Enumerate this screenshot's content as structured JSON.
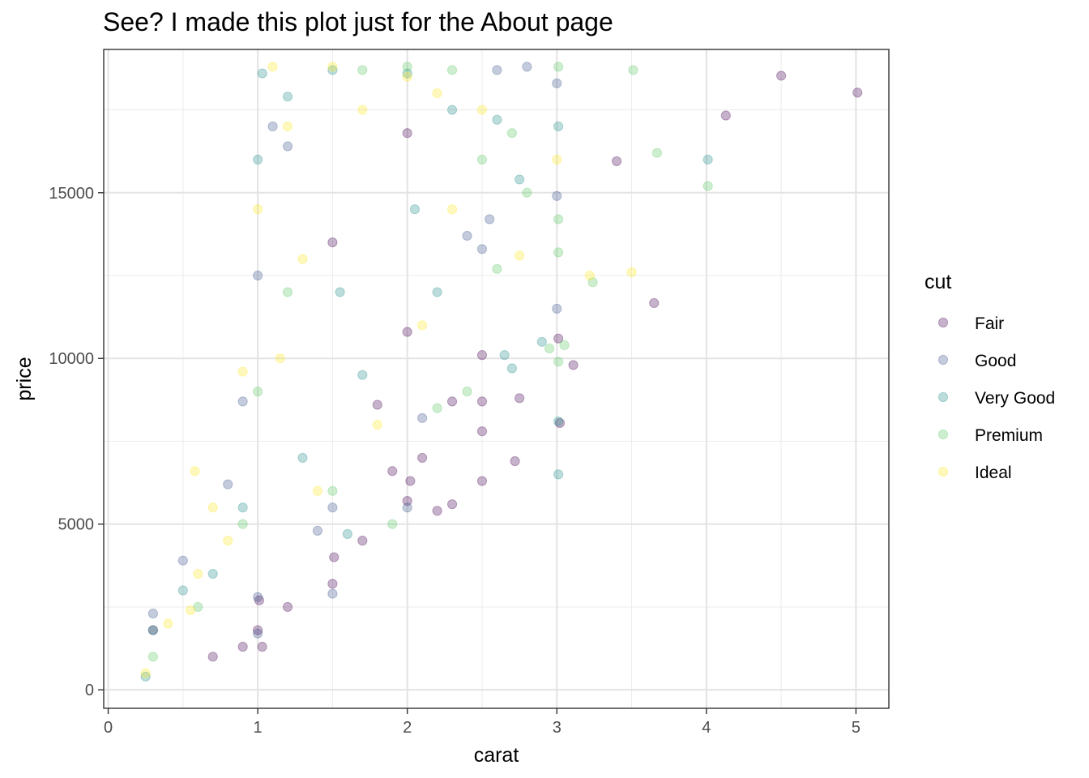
{
  "chart_data": {
    "type": "scatter",
    "title": "See? I made this plot just for the About page",
    "xlabel": "carat",
    "ylabel": "price",
    "xlim": [
      -0.03,
      5.22
    ],
    "ylim": [
      -558,
      19323
    ],
    "x_ticks": [
      0,
      1,
      2,
      3,
      4,
      5
    ],
    "x_tick_labels": [
      "0",
      "1",
      "2",
      "3",
      "4",
      "5"
    ],
    "y_ticks": [
      0,
      5000,
      10000,
      15000
    ],
    "y_tick_labels": [
      "0",
      "5000",
      "10000",
      "15000"
    ],
    "grid": true,
    "legend": {
      "title": "cut",
      "position": "right",
      "entries": [
        {
          "label": "Fair",
          "color": "#440154"
        },
        {
          "label": "Good",
          "color": "#3B528B"
        },
        {
          "label": "Very Good",
          "color": "#21908C"
        },
        {
          "label": "Premium",
          "color": "#5DC863"
        },
        {
          "label": "Ideal",
          "color": "#FDE725"
        }
      ]
    },
    "point_alpha": 0.3,
    "series": [
      {
        "name": "Fair",
        "color": "#440154",
        "points": [
          [
            0.3,
            1800
          ],
          [
            0.7,
            1000
          ],
          [
            0.9,
            1300
          ],
          [
            1.0,
            1800
          ],
          [
            1.01,
            2700
          ],
          [
            1.03,
            1300
          ],
          [
            1.2,
            2500
          ],
          [
            1.5,
            3200
          ],
          [
            1.51,
            4000
          ],
          [
            1.7,
            4500
          ],
          [
            1.9,
            6600
          ],
          [
            2.0,
            5700
          ],
          [
            2.02,
            6300
          ],
          [
            2.1,
            7000
          ],
          [
            2.2,
            5400
          ],
          [
            2.3,
            5600
          ],
          [
            2.5,
            6300
          ],
          [
            2.5,
            7800
          ],
          [
            2.5,
            8700
          ],
          [
            2.72,
            6900
          ],
          [
            2.75,
            8800
          ],
          [
            3.01,
            10600
          ],
          [
            3.11,
            9800
          ],
          [
            3.4,
            15950
          ],
          [
            3.65,
            11670
          ],
          [
            4.13,
            17330
          ],
          [
            4.5,
            18530
          ],
          [
            5.01,
            18020
          ],
          [
            3.02,
            8050
          ],
          [
            2.5,
            10100
          ],
          [
            2.0,
            16800
          ],
          [
            1.5,
            13500
          ],
          [
            2.0,
            10800
          ],
          [
            2.3,
            8700
          ],
          [
            1.8,
            8600
          ]
        ]
      },
      {
        "name": "Good",
        "color": "#3B528B",
        "points": [
          [
            0.3,
            2300
          ],
          [
            0.9,
            8700
          ],
          [
            1.0,
            1700
          ],
          [
            1.0,
            2800
          ],
          [
            1.5,
            2900
          ],
          [
            1.5,
            5500
          ],
          [
            2.0,
            5500
          ],
          [
            2.5,
            13300
          ],
          [
            2.8,
            18800
          ],
          [
            3.0,
            18300
          ],
          [
            3.0,
            11500
          ],
          [
            3.0,
            14900
          ],
          [
            1.0,
            12500
          ],
          [
            1.2,
            16400
          ],
          [
            2.1,
            8200
          ],
          [
            2.6,
            18700
          ],
          [
            1.4,
            4800
          ],
          [
            2.4,
            13700
          ],
          [
            0.5,
            3900
          ],
          [
            1.1,
            17000
          ],
          [
            2.55,
            14200
          ],
          [
            0.8,
            6200
          ]
        ]
      },
      {
        "name": "Very Good",
        "color": "#21908C",
        "points": [
          [
            0.25,
            400
          ],
          [
            0.3,
            1800
          ],
          [
            0.5,
            3000
          ],
          [
            0.7,
            3500
          ],
          [
            1.0,
            16000
          ],
          [
            1.03,
            18600
          ],
          [
            1.2,
            17900
          ],
          [
            1.5,
            18700
          ],
          [
            2.0,
            18600
          ],
          [
            2.3,
            17500
          ],
          [
            2.6,
            17200
          ],
          [
            2.75,
            15400
          ],
          [
            3.01,
            6500
          ],
          [
            3.01,
            8100
          ],
          [
            3.01,
            17000
          ],
          [
            4.01,
            16000
          ],
          [
            2.9,
            10500
          ],
          [
            2.7,
            9700
          ],
          [
            1.7,
            9500
          ],
          [
            2.2,
            12000
          ],
          [
            1.3,
            7000
          ],
          [
            0.9,
            5500
          ],
          [
            2.65,
            10100
          ],
          [
            1.6,
            4700
          ],
          [
            1.55,
            12000
          ],
          [
            2.05,
            14500
          ]
        ]
      },
      {
        "name": "Premium",
        "color": "#5DC863",
        "points": [
          [
            0.3,
            1000
          ],
          [
            0.6,
            2500
          ],
          [
            0.9,
            5000
          ],
          [
            1.0,
            9000
          ],
          [
            1.5,
            6000
          ],
          [
            1.7,
            18700
          ],
          [
            2.0,
            18800
          ],
          [
            2.3,
            18700
          ],
          [
            2.5,
            16000
          ],
          [
            2.8,
            15000
          ],
          [
            3.01,
            18800
          ],
          [
            3.01,
            14200
          ],
          [
            3.01,
            13200
          ],
          [
            3.01,
            9900
          ],
          [
            3.05,
            10400
          ],
          [
            3.24,
            12300
          ],
          [
            3.51,
            18700
          ],
          [
            3.67,
            16200
          ],
          [
            4.01,
            15200
          ],
          [
            2.95,
            10300
          ],
          [
            2.6,
            12700
          ],
          [
            1.9,
            5000
          ],
          [
            2.2,
            8500
          ],
          [
            1.2,
            12000
          ],
          [
            2.4,
            9000
          ],
          [
            2.7,
            16800
          ]
        ]
      },
      {
        "name": "Ideal",
        "color": "#FDE725",
        "points": [
          [
            0.25,
            500
          ],
          [
            0.4,
            2000
          ],
          [
            0.6,
            3500
          ],
          [
            0.7,
            5500
          ],
          [
            0.8,
            4500
          ],
          [
            0.9,
            9600
          ],
          [
            1.0,
            14500
          ],
          [
            1.1,
            18800
          ],
          [
            1.2,
            17000
          ],
          [
            1.3,
            13000
          ],
          [
            1.5,
            18800
          ],
          [
            1.7,
            17500
          ],
          [
            2.0,
            18500
          ],
          [
            2.2,
            18000
          ],
          [
            2.5,
            17500
          ],
          [
            3.0,
            16000
          ],
          [
            2.75,
            13100
          ],
          [
            3.22,
            12500
          ],
          [
            3.5,
            12600
          ],
          [
            1.8,
            8000
          ],
          [
            1.4,
            6000
          ],
          [
            2.3,
            14500
          ],
          [
            0.58,
            6600
          ],
          [
            2.1,
            11000
          ],
          [
            1.15,
            10000
          ],
          [
            0.55,
            2400
          ]
        ]
      }
    ]
  }
}
